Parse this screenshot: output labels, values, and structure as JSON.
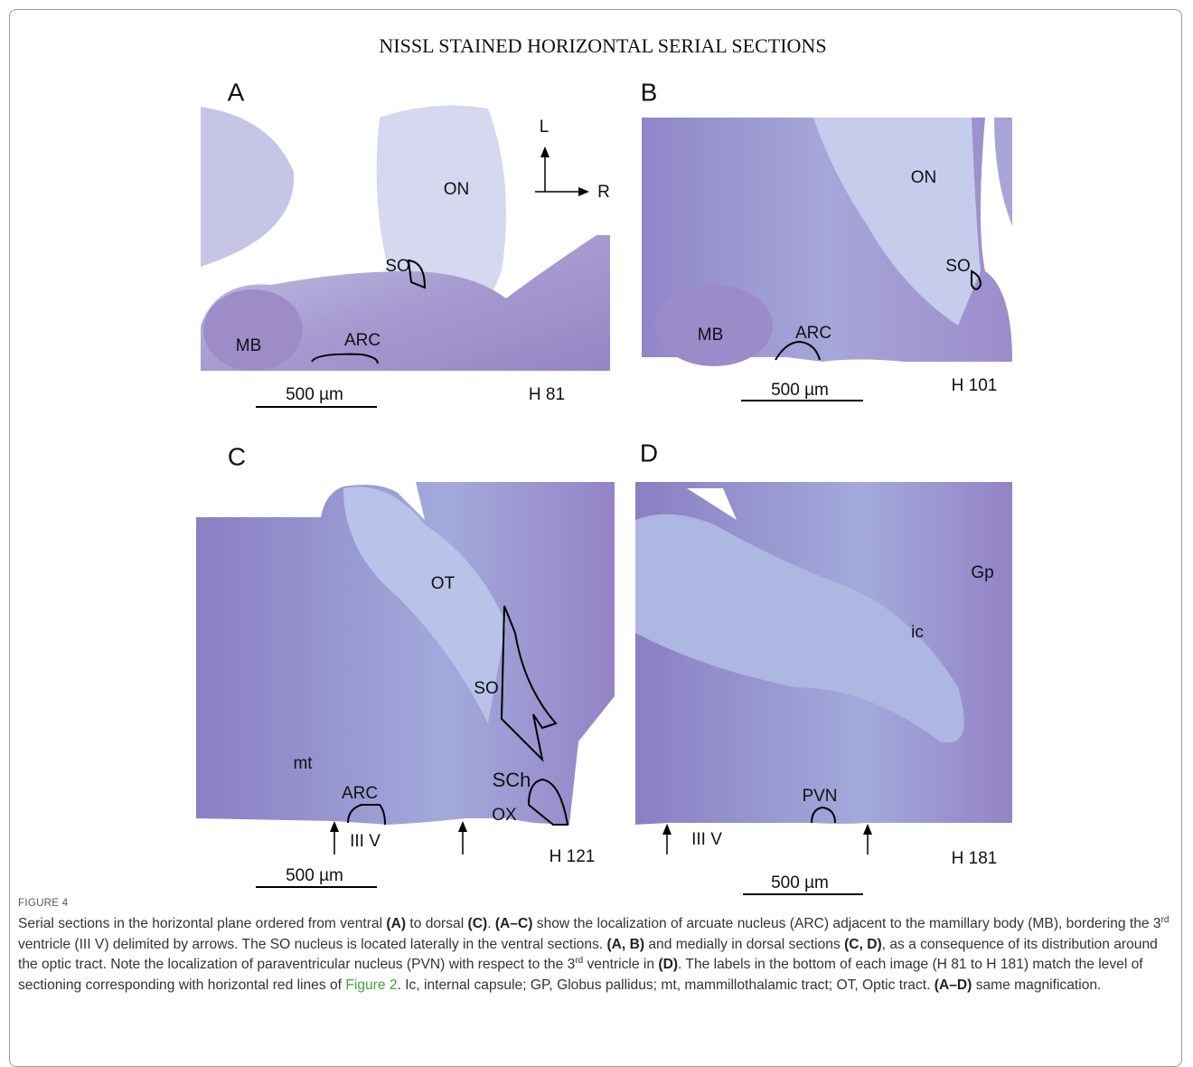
{
  "figure": {
    "title": "NISSL STAINED HORIZONTAL SERIAL SECTIONS",
    "orientation": [
      "L",
      "R"
    ],
    "panels": [
      {
        "letter": "A",
        "labels": [
          "ON",
          "SO",
          "MB",
          "ARC"
        ],
        "scale_bar": "500 µm",
        "level": "H 81"
      },
      {
        "letter": "B",
        "labels": [
          "ON",
          "SO",
          "MB",
          "ARC"
        ],
        "scale_bar": "500 µm",
        "level": "H 101"
      },
      {
        "letter": "C",
        "labels": [
          "OT",
          "SO",
          "mt",
          "ARC",
          "SCh",
          "OX",
          "III V"
        ],
        "scale_bar": "500 µm",
        "level": "H 121"
      },
      {
        "letter": "D",
        "labels": [
          "Gp",
          "ic",
          "PVN",
          "III V"
        ],
        "scale_bar": "500 µm",
        "level": "H 181"
      }
    ],
    "caption_label": "FIGURE 4",
    "caption": [
      "Serial sections in the horizontal plane ordered from ventral ",
      "(A)",
      " to dorsal ",
      "(C)",
      ". ",
      "(A–C)",
      " show the localization of arcuate nucleus (ARC) adjacent to the mamillary body (MB), bordering the 3",
      "rd",
      " ventricle (III V) delimited by arrows. The SO nucleus is located laterally in the ventral sections. ",
      "(A, B)",
      " and medially in dorsal sections ",
      "(C, D)",
      ", as a consequence of its distribution around the optic tract. Note the localization of paraventricular nucleus (PVN) with respect to the 3",
      "rd",
      " ventricle in ",
      "(D)",
      ". The labels in the bottom of each image (H 81 to H 181) match the level of sectioning corresponding with horizontal red lines of ",
      "Figure 2",
      ". Ic, internal capsule; GP, Globus pallidus; mt, mammillothalamic tract; OT, Optic tract. ",
      "(A–D)",
      " same magnification."
    ]
  }
}
